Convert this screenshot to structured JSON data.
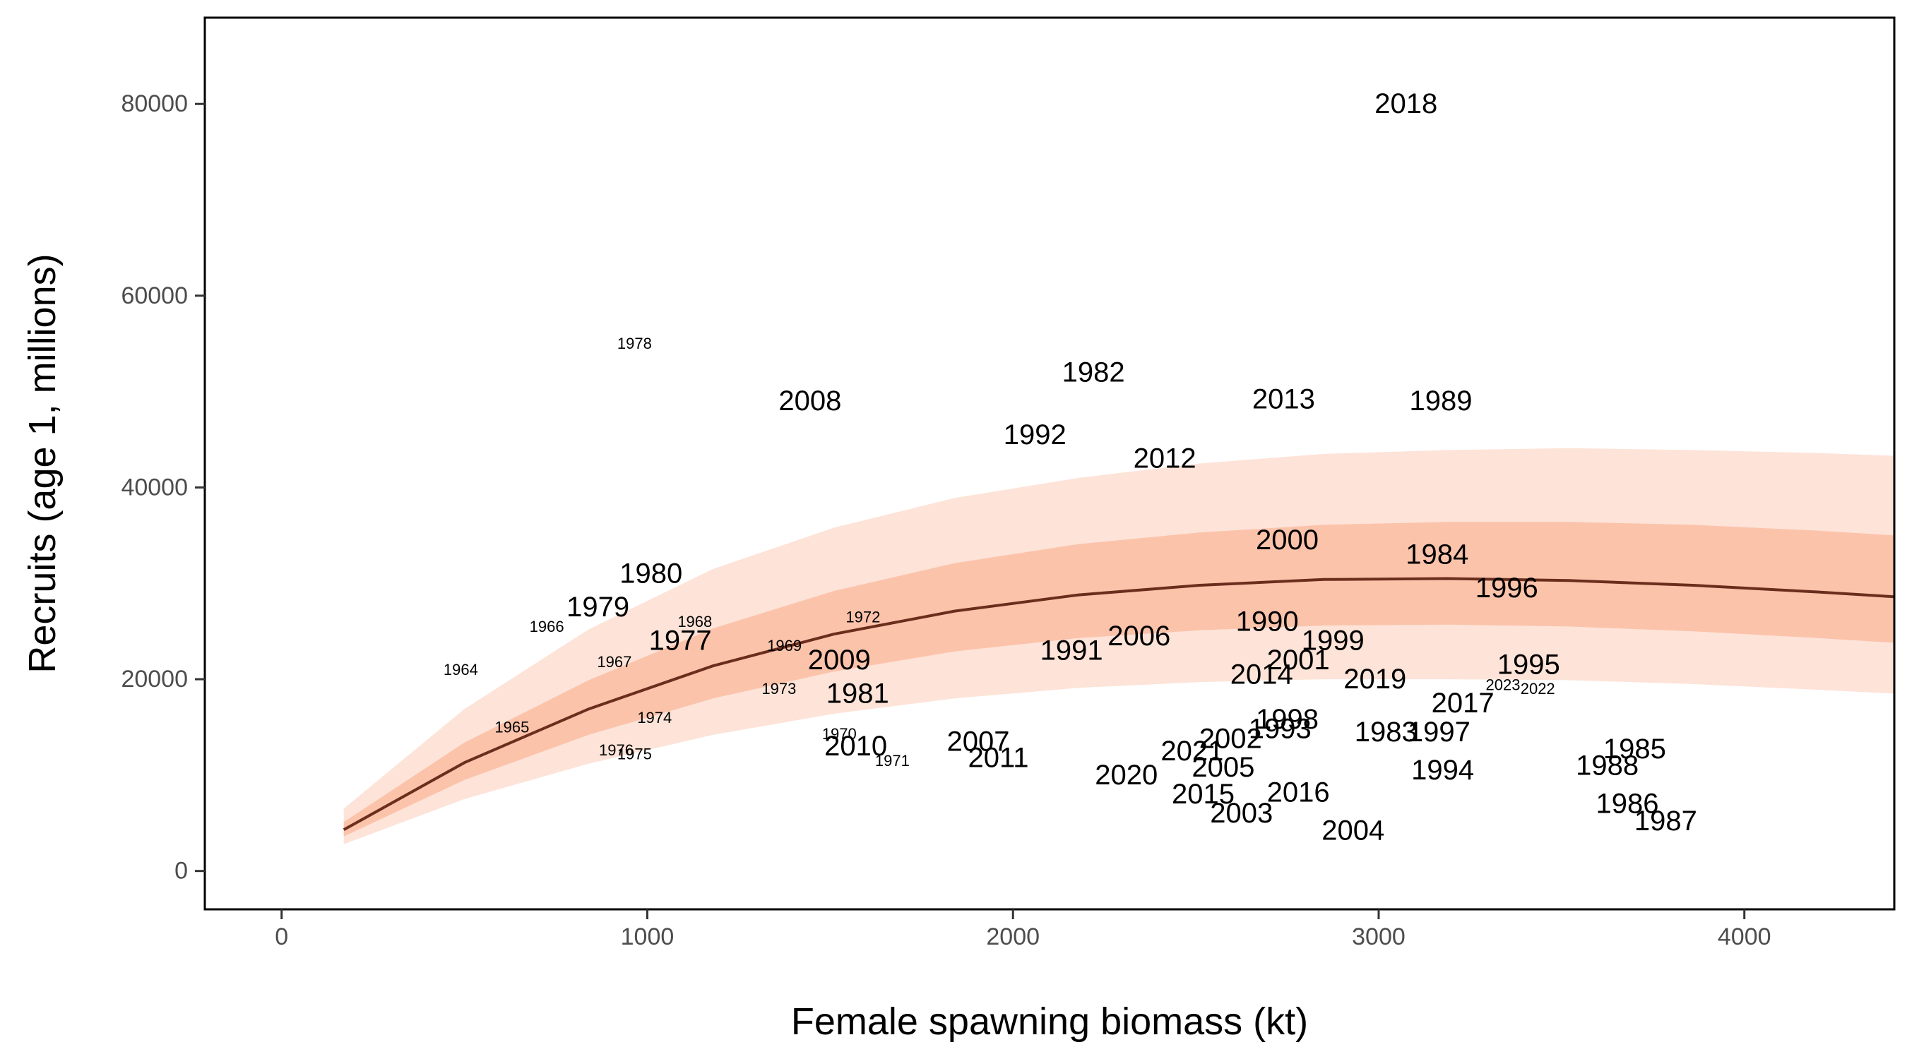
{
  "chart_data": {
    "type": "scatter",
    "title": "",
    "xlabel": "Female spawning biomass (kt)",
    "ylabel": "Recruits (age 1, millions)",
    "xlim": [
      -210,
      4410
    ],
    "ylim": [
      -4000,
      89000
    ],
    "xticks": [
      0,
      1000,
      2000,
      3000,
      4000
    ],
    "yticks": [
      0,
      20000,
      40000,
      60000,
      80000
    ],
    "grid": false,
    "legend": "none",
    "colors": {
      "median_line": "#6b2d1c",
      "band_outer": "#fde3d8",
      "band_inner": "#fcc3ab",
      "frame": "#000000"
    },
    "curve": {
      "x": [
        170,
        500,
        840,
        1180,
        1510,
        1840,
        2180,
        2510,
        2850,
        3190,
        3520,
        3860,
        4200,
        4410
      ],
      "median": [
        4300,
        11300,
        16900,
        21400,
        24700,
        27100,
        28800,
        29800,
        30400,
        30500,
        30300,
        29800,
        29100,
        28600
      ],
      "inner_low": [
        3600,
        9500,
        14200,
        18000,
        20800,
        22900,
        24300,
        25100,
        25600,
        25700,
        25500,
        25000,
        24300,
        23800
      ],
      "inner_high": [
        5100,
        13400,
        19900,
        25300,
        29200,
        32100,
        34100,
        35300,
        36100,
        36400,
        36400,
        36100,
        35500,
        35000
      ],
      "outer_low": [
        2800,
        7500,
        11200,
        14200,
        16400,
        18000,
        19100,
        19700,
        20000,
        20000,
        19900,
        19500,
        18900,
        18500
      ],
      "outer_high": [
        6500,
        16900,
        25200,
        31500,
        35800,
        38900,
        41000,
        42500,
        43500,
        43900,
        44100,
        43900,
        43600,
        43300
      ]
    },
    "points": [
      {
        "label": "1964",
        "x": 490,
        "y": 21000,
        "size": 22
      },
      {
        "label": "1965",
        "x": 630,
        "y": 15000,
        "size": 22
      },
      {
        "label": "1966",
        "x": 725,
        "y": 25500,
        "size": 22
      },
      {
        "label": "1967",
        "x": 910,
        "y": 21800,
        "size": 22
      },
      {
        "label": "1968",
        "x": 1130,
        "y": 26000,
        "size": 22
      },
      {
        "label": "1969",
        "x": 1375,
        "y": 23500,
        "size": 22
      },
      {
        "label": "1970",
        "x": 1525,
        "y": 14300,
        "size": 22
      },
      {
        "label": "1971",
        "x": 1670,
        "y": 11500,
        "size": 22
      },
      {
        "label": "1972",
        "x": 1590,
        "y": 26500,
        "size": 22
      },
      {
        "label": "1973",
        "x": 1360,
        "y": 19000,
        "size": 22
      },
      {
        "label": "1974",
        "x": 1020,
        "y": 16000,
        "size": 22
      },
      {
        "label": "1975",
        "x": 965,
        "y": 12200,
        "size": 22
      },
      {
        "label": "1976",
        "x": 915,
        "y": 12600,
        "size": 22
      },
      {
        "label": "1977",
        "x": 1090,
        "y": 24000,
        "size": 40
      },
      {
        "label": "1978",
        "x": 965,
        "y": 55000,
        "size": 22
      },
      {
        "label": "1979",
        "x": 865,
        "y": 27500,
        "size": 40
      },
      {
        "label": "1980",
        "x": 1010,
        "y": 31000,
        "size": 40
      },
      {
        "label": "1981",
        "x": 1575,
        "y": 18500,
        "size": 40
      },
      {
        "label": "1982",
        "x": 2220,
        "y": 52000,
        "size": 40
      },
      {
        "label": "1983",
        "x": 3020,
        "y": 14500,
        "size": 40
      },
      {
        "label": "1984",
        "x": 3160,
        "y": 33000,
        "size": 40
      },
      {
        "label": "1985",
        "x": 3700,
        "y": 12700,
        "size": 40
      },
      {
        "label": "1986",
        "x": 3680,
        "y": 7000,
        "size": 40
      },
      {
        "label": "1987",
        "x": 3785,
        "y": 5200,
        "size": 40
      },
      {
        "label": "1988",
        "x": 3625,
        "y": 11000,
        "size": 40
      },
      {
        "label": "1989",
        "x": 3170,
        "y": 49000,
        "size": 40
      },
      {
        "label": "1990",
        "x": 2695,
        "y": 26000,
        "size": 40
      },
      {
        "label": "1991",
        "x": 2160,
        "y": 23000,
        "size": 40
      },
      {
        "label": "1992",
        "x": 2060,
        "y": 45500,
        "size": 40
      },
      {
        "label": "1993",
        "x": 2730,
        "y": 14800,
        "size": 40
      },
      {
        "label": "1994",
        "x": 3175,
        "y": 10500,
        "size": 40
      },
      {
        "label": "1995",
        "x": 3410,
        "y": 21500,
        "size": 40
      },
      {
        "label": "1996",
        "x": 3350,
        "y": 29500,
        "size": 40
      },
      {
        "label": "1997",
        "x": 3165,
        "y": 14500,
        "size": 40
      },
      {
        "label": "1998",
        "x": 2750,
        "y": 15800,
        "size": 40
      },
      {
        "label": "1999",
        "x": 2875,
        "y": 24000,
        "size": 40
      },
      {
        "label": "2000",
        "x": 2750,
        "y": 34500,
        "size": 40
      },
      {
        "label": "2001",
        "x": 2780,
        "y": 22000,
        "size": 40
      },
      {
        "label": "2002",
        "x": 2595,
        "y": 13800,
        "size": 40
      },
      {
        "label": "2003",
        "x": 2625,
        "y": 6000,
        "size": 40
      },
      {
        "label": "2004",
        "x": 2930,
        "y": 4200,
        "size": 40
      },
      {
        "label": "2005",
        "x": 2575,
        "y": 10800,
        "size": 40
      },
      {
        "label": "2006",
        "x": 2345,
        "y": 24500,
        "size": 40
      },
      {
        "label": "2007",
        "x": 1905,
        "y": 13500,
        "size": 40
      },
      {
        "label": "2008",
        "x": 1445,
        "y": 49000,
        "size": 40
      },
      {
        "label": "2009",
        "x": 1525,
        "y": 22000,
        "size": 40
      },
      {
        "label": "2010",
        "x": 1570,
        "y": 13000,
        "size": 40
      },
      {
        "label": "2011",
        "x": 1960,
        "y": 11800,
        "size": 40
      },
      {
        "label": "2012",
        "x": 2415,
        "y": 43000,
        "size": 40
      },
      {
        "label": "2013",
        "x": 2740,
        "y": 49200,
        "size": 40
      },
      {
        "label": "2014",
        "x": 2680,
        "y": 20500,
        "size": 40
      },
      {
        "label": "2015",
        "x": 2520,
        "y": 8000,
        "size": 40
      },
      {
        "label": "2016",
        "x": 2780,
        "y": 8200,
        "size": 40
      },
      {
        "label": "2017",
        "x": 3230,
        "y": 17500,
        "size": 40
      },
      {
        "label": "2018",
        "x": 3075,
        "y": 80000,
        "size": 40
      },
      {
        "label": "2019",
        "x": 2990,
        "y": 20000,
        "size": 40
      },
      {
        "label": "2020",
        "x": 2310,
        "y": 10000,
        "size": 40
      },
      {
        "label": "2021",
        "x": 2490,
        "y": 12500,
        "size": 40
      },
      {
        "label": "2022",
        "x": 3435,
        "y": 19000,
        "size": 22
      },
      {
        "label": "2023",
        "x": 3340,
        "y": 19400,
        "size": 22
      }
    ]
  }
}
